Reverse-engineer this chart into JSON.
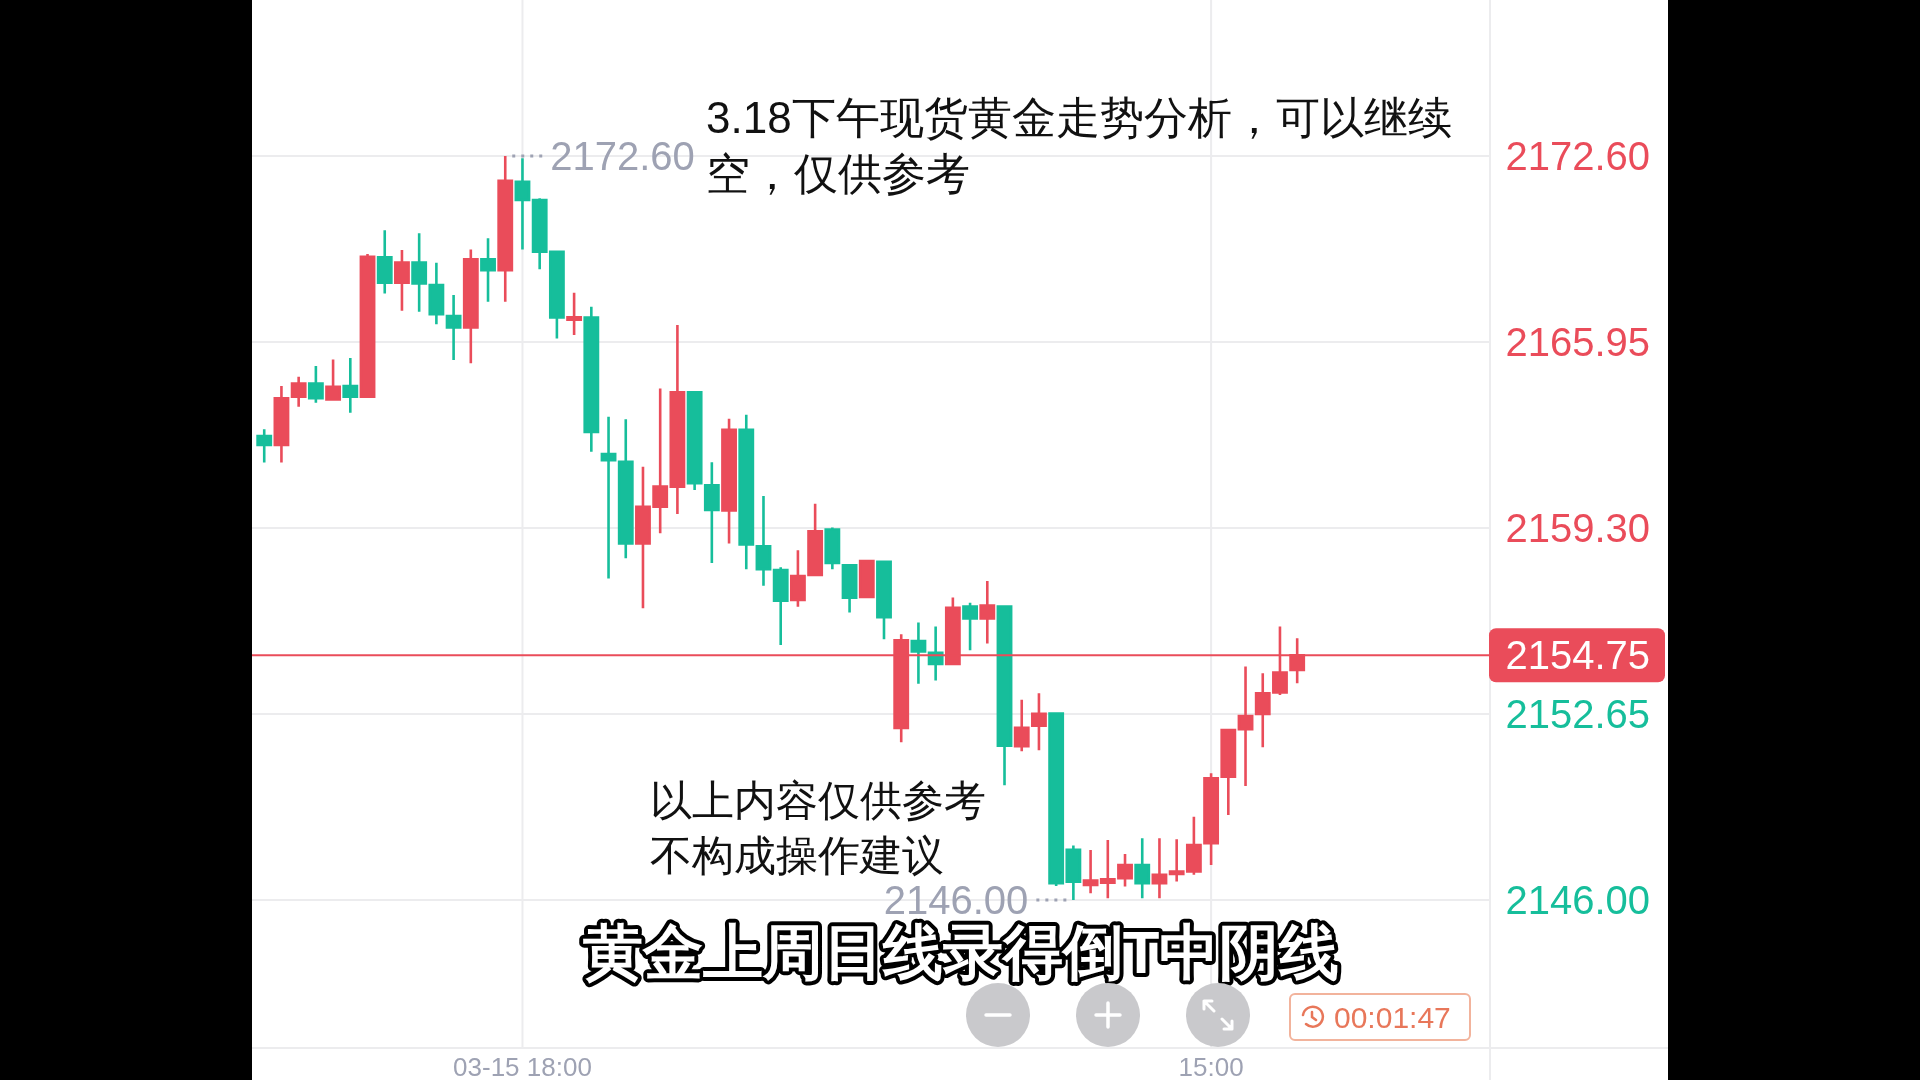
{
  "chart_data": {
    "type": "candlestick",
    "title": "3.18下午现货黄金走势分析，可以继续空，仅供参考",
    "categories": [
      null,
      null,
      null,
      null,
      null,
      null,
      null,
      null,
      null,
      null,
      null,
      null,
      null,
      null,
      null,
      "03-15 18:00",
      null,
      null,
      null,
      null,
      null,
      null,
      null,
      null,
      null,
      null,
      null,
      null,
      null,
      null,
      null,
      null,
      null,
      null,
      null,
      null,
      null,
      null,
      null,
      null,
      null,
      null,
      null,
      null,
      null,
      null,
      null,
      null,
      null,
      null,
      null,
      null,
      null,
      null,
      null,
      "15:00",
      null,
      null,
      null,
      null,
      null
    ],
    "ohlc": [
      [
        2162.59,
        2162.83,
        2161.64,
        2162.27
      ],
      [
        2162.27,
        2164.38,
        2161.64,
        2163.94
      ],
      [
        2164.0,
        2164.71,
        2163.64,
        2164.47
      ],
      [
        2164.47,
        2165.09,
        2163.78,
        2163.94
      ],
      [
        2163.9,
        2165.33,
        2163.88,
        2164.35
      ],
      [
        2164.38,
        2165.38,
        2163.42,
        2164.0
      ],
      [
        2164.0,
        2169.1,
        2163.97,
        2169.0
      ],
      [
        2168.98,
        2169.95,
        2167.69,
        2168.07
      ],
      [
        2168.07,
        2169.24,
        2167.07,
        2168.79
      ],
      [
        2168.79,
        2169.84,
        2167.03,
        2168.05
      ],
      [
        2167.99,
        2168.79,
        2166.59,
        2166.95
      ],
      [
        2166.88,
        2167.63,
        2165.31,
        2166.47
      ],
      [
        2166.47,
        2169.26,
        2165.19,
        2168.91
      ],
      [
        2168.91,
        2169.66,
        2167.39,
        2168.52
      ],
      [
        2168.52,
        2172.6,
        2167.39,
        2171.72
      ],
      [
        2171.68,
        2172.52,
        2169.26,
        2171.03
      ],
      [
        2171.03,
        2171.09,
        2168.55,
        2169.18
      ],
      [
        2169.18,
        2169.22,
        2166.08,
        2166.83
      ],
      [
        2166.76,
        2167.71,
        2166.2,
        2166.83
      ],
      [
        2166.83,
        2167.21,
        2162.03,
        2162.74
      ],
      [
        2161.95,
        2163.28,
        2157.5,
        2161.73
      ],
      [
        2161.67,
        2163.19,
        2158.22,
        2158.75
      ],
      [
        2158.75,
        2161.49,
        2156.43,
        2160.06
      ],
      [
        2160.06,
        2164.29,
        2159.11,
        2160.78
      ],
      [
        2160.78,
        2166.56,
        2159.8,
        2164.15
      ],
      [
        2164.15,
        2164.15,
        2160.66,
        2160.9
      ],
      [
        2160.83,
        2161.65,
        2158.05,
        2159.95
      ],
      [
        2159.93,
        2163.21,
        2158.75,
        2162.81
      ],
      [
        2162.81,
        2163.35,
        2157.83,
        2158.71
      ],
      [
        2158.65,
        2160.45,
        2157.24,
        2157.83
      ],
      [
        2157.8,
        2157.9,
        2155.12,
        2156.7
      ],
      [
        2156.73,
        2158.51,
        2156.49,
        2157.58
      ],
      [
        2157.62,
        2160.17,
        2157.58,
        2159.18
      ],
      [
        2159.25,
        2159.32,
        2157.83,
        2158.05
      ],
      [
        2157.97,
        2158.0,
        2156.28,
        2156.81
      ],
      [
        2156.84,
        2158.14,
        2156.81,
        2158.12
      ],
      [
        2158.09,
        2158.12,
        2155.32,
        2156.11
      ],
      [
        2152.15,
        2155.5,
        2151.64,
        2155.29
      ],
      [
        2155.26,
        2155.92,
        2153.73,
        2154.89
      ],
      [
        2154.84,
        2155.78,
        2153.85,
        2154.44
      ],
      [
        2154.44,
        2156.82,
        2154.44,
        2156.45
      ],
      [
        2156.49,
        2156.63,
        2154.93,
        2156.07
      ],
      [
        2156.07,
        2157.41,
        2155.17,
        2156.53
      ],
      [
        2156.49,
        2156.49,
        2150.1,
        2151.52
      ],
      [
        2151.5,
        2153.16,
        2151.32,
        2152.16
      ],
      [
        2152.23,
        2153.39,
        2151.36,
        2152.66
      ],
      [
        2152.67,
        2152.67,
        2146.5,
        2146.6
      ],
      [
        2147.8,
        2147.95,
        2146.0,
        2146.66
      ],
      [
        2146.54,
        2147.79,
        2146.24,
        2146.7
      ],
      [
        2146.62,
        2148.15,
        2146.06,
        2146.74
      ],
      [
        2146.78,
        2147.65,
        2146.48,
        2147.25
      ],
      [
        2147.25,
        2148.21,
        2146.06,
        2146.6
      ],
      [
        2146.6,
        2148.21,
        2146.06,
        2146.9
      ],
      [
        2146.93,
        2148.17,
        2146.66,
        2147.02
      ],
      [
        2147.02,
        2148.98,
        2146.9,
        2147.97
      ],
      [
        2148.03,
        2150.53,
        2147.25,
        2150.35
      ],
      [
        2150.41,
        2152.08,
        2149.04,
        2152.08
      ],
      [
        2152.11,
        2154.35,
        2150.08,
        2152.58
      ],
      [
        2152.65,
        2154.11,
        2151.46,
        2153.39
      ],
      [
        2153.42,
        2155.78,
        2153.33,
        2154.13
      ],
      [
        2154.23,
        2155.36,
        2153.75,
        2154.75
      ]
    ],
    "colors": [
      "#16be9b",
      "#ea4c5a",
      "#ea4c5a",
      "#16be9b",
      "#ea4c5a",
      "#16be9b",
      "#ea4c5a",
      "#16be9b",
      "#ea4c5a",
      "#16be9b",
      "#16be9b",
      "#16be9b",
      "#ea4c5a",
      "#16be9b",
      "#ea4c5a",
      "#16be9b",
      "#16be9b",
      "#16be9b",
      "#ea4c5a",
      "#16be9b",
      "#16be9b",
      "#16be9b",
      "#ea4c5a",
      "#ea4c5a",
      "#ea4c5a",
      "#16be9b",
      "#16be9b",
      "#ea4c5a",
      "#16be9b",
      "#16be9b",
      "#16be9b",
      "#ea4c5a",
      "#ea4c5a",
      "#16be9b",
      "#16be9b",
      "#ea4c5a",
      "#16be9b",
      "#ea4c5a",
      "#16be9b",
      "#16be9b",
      "#ea4c5a",
      "#16be9b",
      "#ea4c5a",
      "#16be9b",
      "#ea4c5a",
      "#ea4c5a",
      "#16be9b",
      "#16be9b",
      "#ea4c5a",
      "#ea4c5a",
      "#ea4c5a",
      "#16be9b",
      "#ea4c5a",
      "#ea4c5a",
      "#ea4c5a",
      "#ea4c5a",
      "#ea4c5a",
      "#ea4c5a",
      "#ea4c5a",
      "#ea4c5a",
      "#ea4c5a"
    ],
    "ylim": [
      2140.71,
      2178.18
    ],
    "yticks": [
      {
        "value": 2146.0,
        "label": "2146.00"
      },
      {
        "value": 2152.65,
        "label": "2152.65"
      },
      {
        "value": 2159.3,
        "label": "2159.30"
      },
      {
        "value": 2165.95,
        "label": "2165.95"
      },
      {
        "value": 2172.6,
        "label": "2172.60"
      }
    ],
    "grid": true,
    "ref_lines": [
      {
        "axis": "y",
        "value": 2154.75,
        "label": "2154.75",
        "color": "#ea4c5a"
      }
    ],
    "annotations": [
      "2172.60",
      "2146.00",
      "以上内容仅供参考",
      "不构成操作建议",
      "黄金上周日线录得倒T中阴线",
      "00:01:47"
    ]
  }
}
